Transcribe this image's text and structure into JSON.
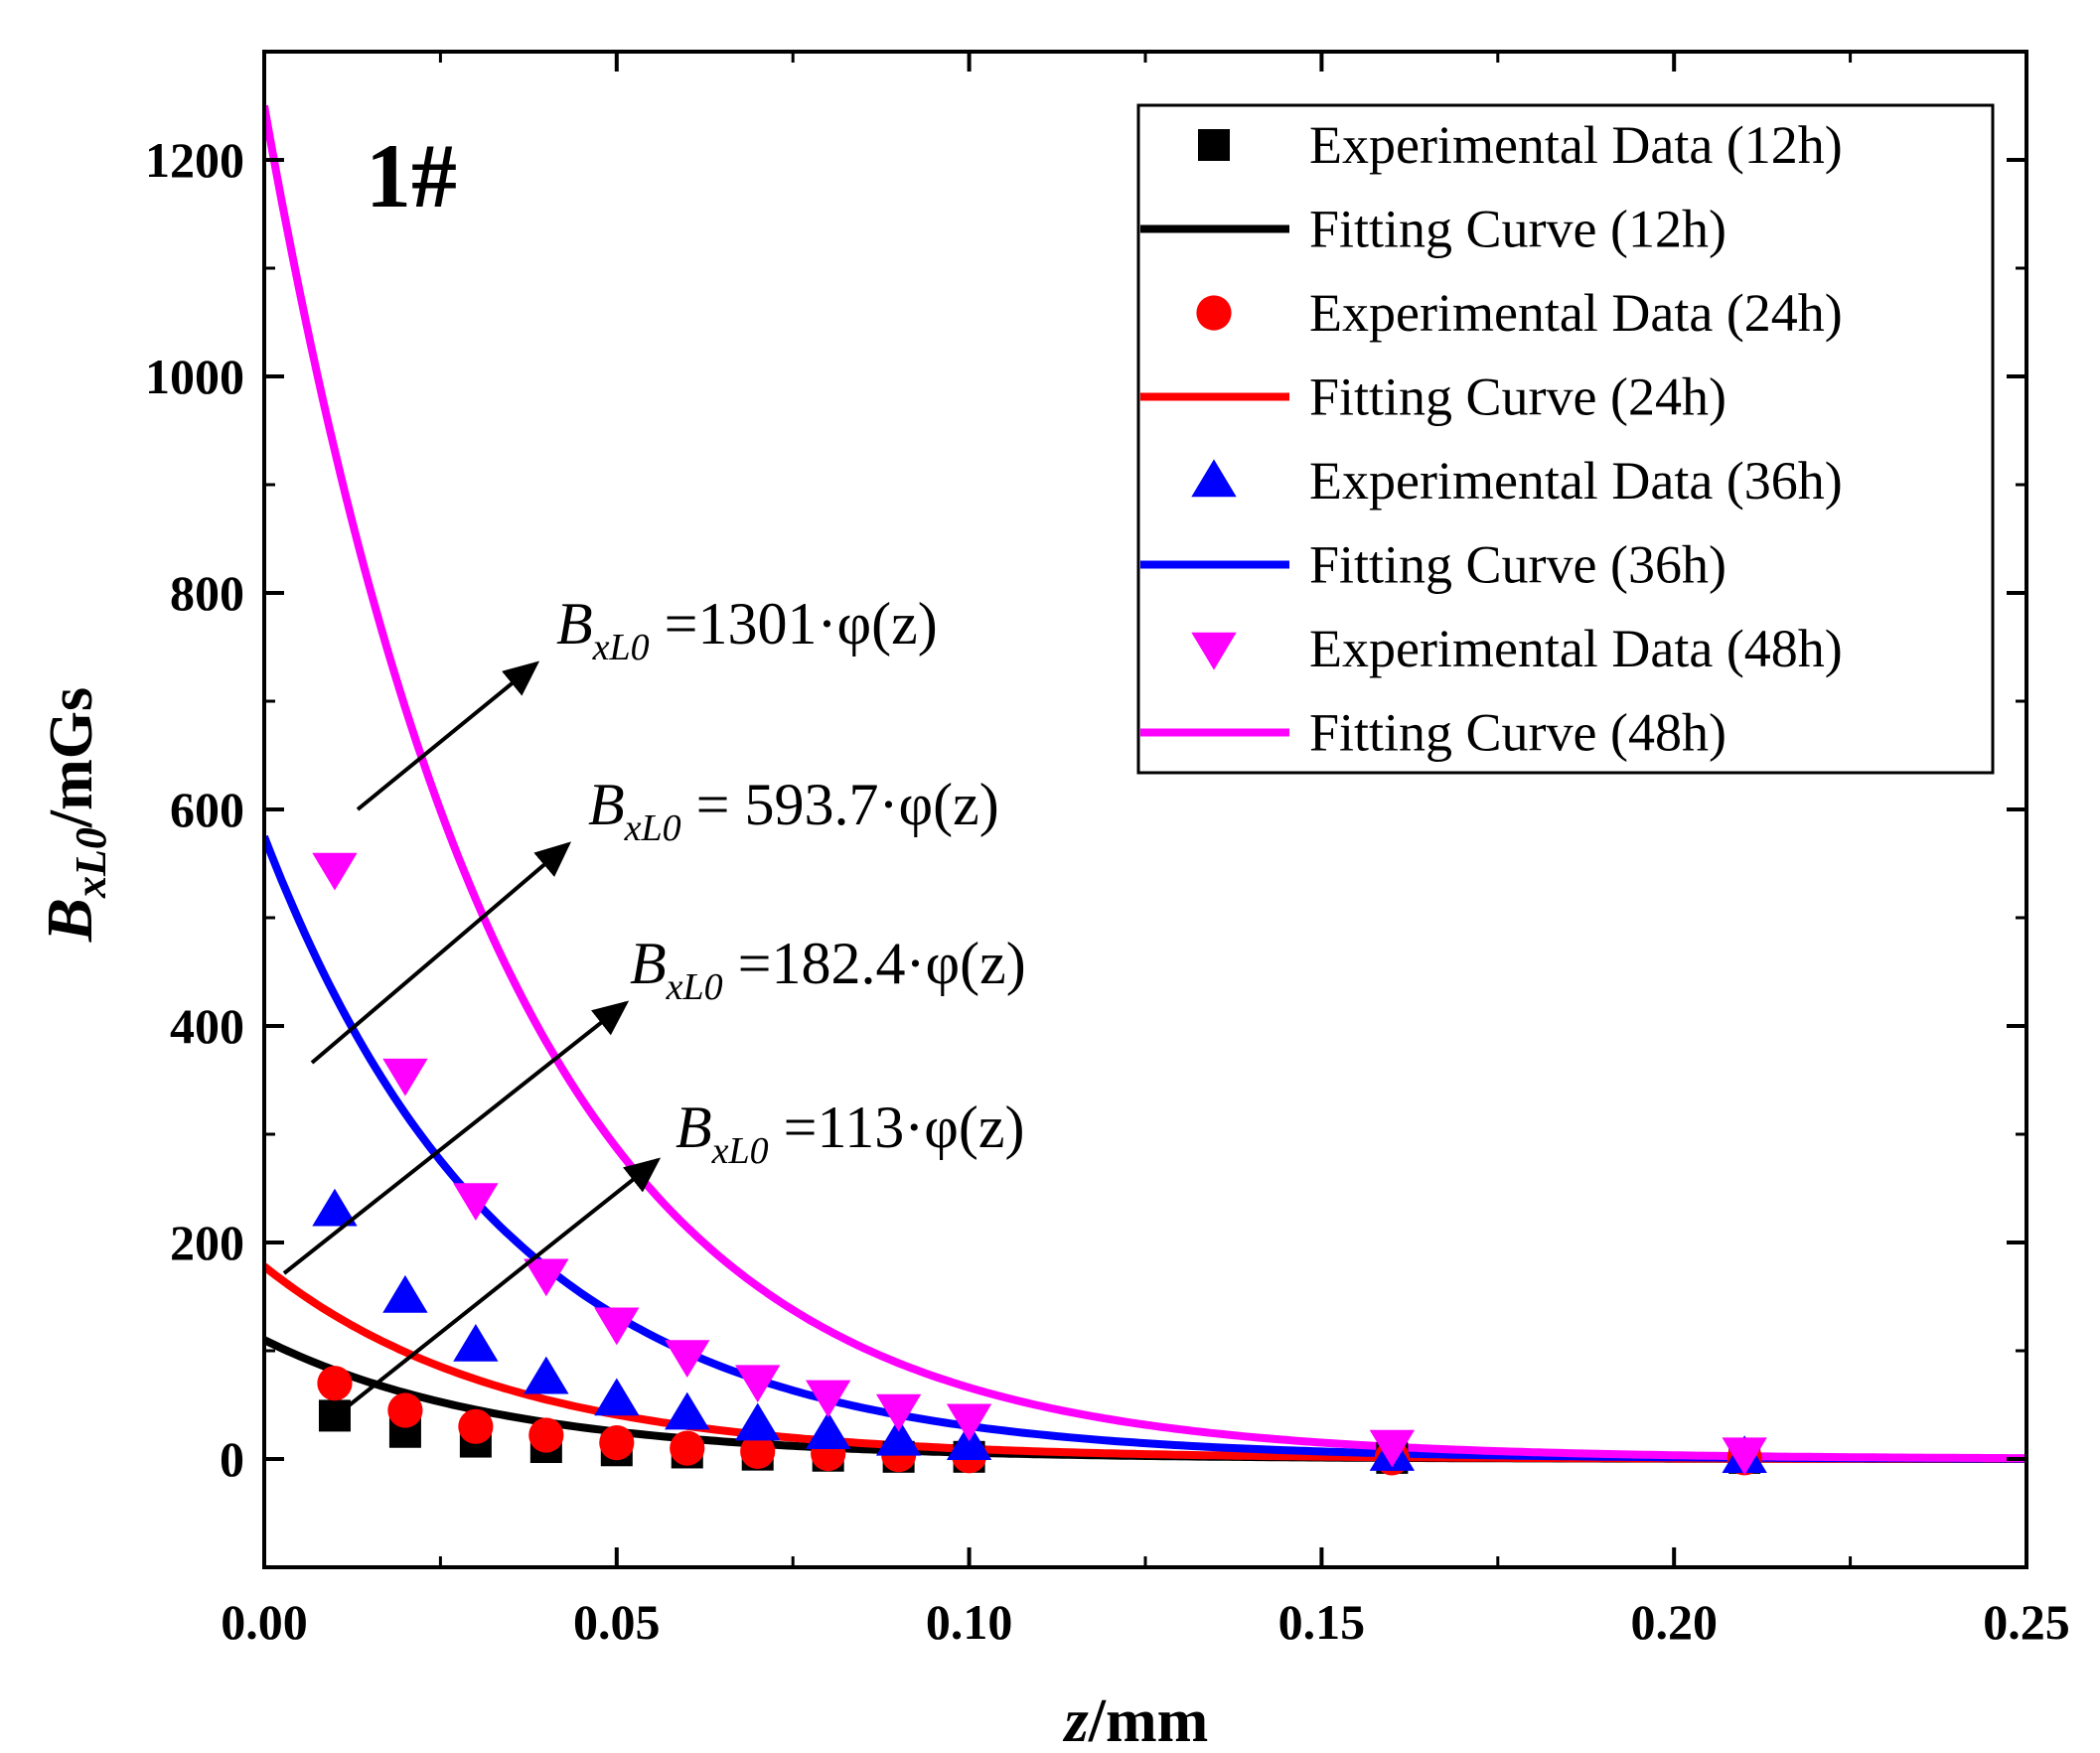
{
  "chart_data": {
    "type": "scatter",
    "panel_label": "1#",
    "xlabel": {
      "var": "z",
      "unit": "/mm"
    },
    "ylabel": {
      "var": "B",
      "sub": "xL0",
      "unit": "/mGs"
    },
    "xlim": [
      0,
      0.25
    ],
    "ylim": [
      -100,
      1300
    ],
    "x_ticks": [
      {
        "value": 0.0,
        "label": "0.00"
      },
      {
        "value": 0.05,
        "label": "0.05"
      },
      {
        "value": 0.1,
        "label": "0.10"
      },
      {
        "value": 0.15,
        "label": "0.15"
      },
      {
        "value": 0.2,
        "label": "0.20"
      },
      {
        "value": 0.25,
        "label": "0.25"
      }
    ],
    "y_ticks": [
      {
        "value": 0,
        "label": "0"
      },
      {
        "value": 200,
        "label": "200"
      },
      {
        "value": 400,
        "label": "400"
      },
      {
        "value": 600,
        "label": "600"
      },
      {
        "value": 800,
        "label": "800"
      },
      {
        "value": 1000,
        "label": "1000"
      },
      {
        "value": 1200,
        "label": "1200"
      }
    ],
    "x_minor_step": 0.025,
    "y_minor_step": 100,
    "decay_constant_mm": 0.034,
    "series": [
      {
        "name": "12h",
        "color": "#000000",
        "marker": "square",
        "amplitude": 113,
        "fit_y0": 110,
        "x": [
          0.01,
          0.02,
          0.03,
          0.04,
          0.05,
          0.06,
          0.07,
          0.08,
          0.09,
          0.1,
          0.16,
          0.21
        ],
        "y": [
          40,
          25,
          16,
          11,
          8,
          6,
          4,
          3,
          2,
          2,
          1,
          1
        ]
      },
      {
        "name": "24h",
        "color": "#ff0000",
        "marker": "circle",
        "amplitude": 182.4,
        "fit_y0": 178,
        "x": [
          0.01,
          0.02,
          0.03,
          0.04,
          0.05,
          0.06,
          0.07,
          0.08,
          0.09,
          0.1,
          0.16,
          0.21
        ],
        "y": [
          70,
          45,
          30,
          22,
          15,
          10,
          7,
          5,
          4,
          3,
          1,
          1
        ]
      },
      {
        "name": "36h",
        "color": "#0000ff",
        "marker": "triangle-up",
        "amplitude": 593.7,
        "fit_y0": 575,
        "x": [
          0.01,
          0.02,
          0.03,
          0.04,
          0.05,
          0.06,
          0.07,
          0.08,
          0.09,
          0.1,
          0.16,
          0.21
        ],
        "y": [
          230,
          150,
          105,
          75,
          55,
          42,
          32,
          24,
          18,
          14,
          4,
          2
        ]
      },
      {
        "name": "48h",
        "color": "#ff00ff",
        "marker": "triangle-down",
        "amplitude": 1301,
        "fit_y0": 1250,
        "x": [
          0.01,
          0.02,
          0.03,
          0.04,
          0.05,
          0.06,
          0.07,
          0.08,
          0.09,
          0.1,
          0.16,
          0.21
        ],
        "y": [
          545,
          355,
          240,
          170,
          125,
          95,
          72,
          58,
          45,
          36,
          12,
          5
        ]
      }
    ],
    "legend": {
      "position": "top-right",
      "entries": [
        {
          "label": "Experimental Data (12h)",
          "kind": "marker",
          "series": 0
        },
        {
          "label": "Fitting Curve (12h)",
          "kind": "line",
          "series": 0
        },
        {
          "label": "Experimental Data (24h)",
          "kind": "marker",
          "series": 1
        },
        {
          "label": "Fitting Curve (24h)",
          "kind": "line",
          "series": 1
        },
        {
          "label": "Experimental Data (36h)",
          "kind": "marker",
          "series": 2
        },
        {
          "label": "Fitting Curve (36h)",
          "kind": "line",
          "series": 2
        },
        {
          "label": "Experimental Data (48h)",
          "kind": "marker",
          "series": 3
        },
        {
          "label": "Fitting Curve (48h)",
          "kind": "line",
          "series": 3
        }
      ]
    },
    "annotations": [
      {
        "var": "B",
        "sub": "xL0",
        "rest": " =1301·φ(z)",
        "series": 3
      },
      {
        "var": "B",
        "sub": "xL0",
        "rest": " = 593.7·φ(z)",
        "series": 2
      },
      {
        "var": "B",
        "sub": "xL0",
        "rest": " =182.4·φ(z)",
        "series": 1
      },
      {
        "var": "B",
        "sub": "xL0",
        "rest": " =113·φ(z)",
        "series": 0
      }
    ]
  }
}
